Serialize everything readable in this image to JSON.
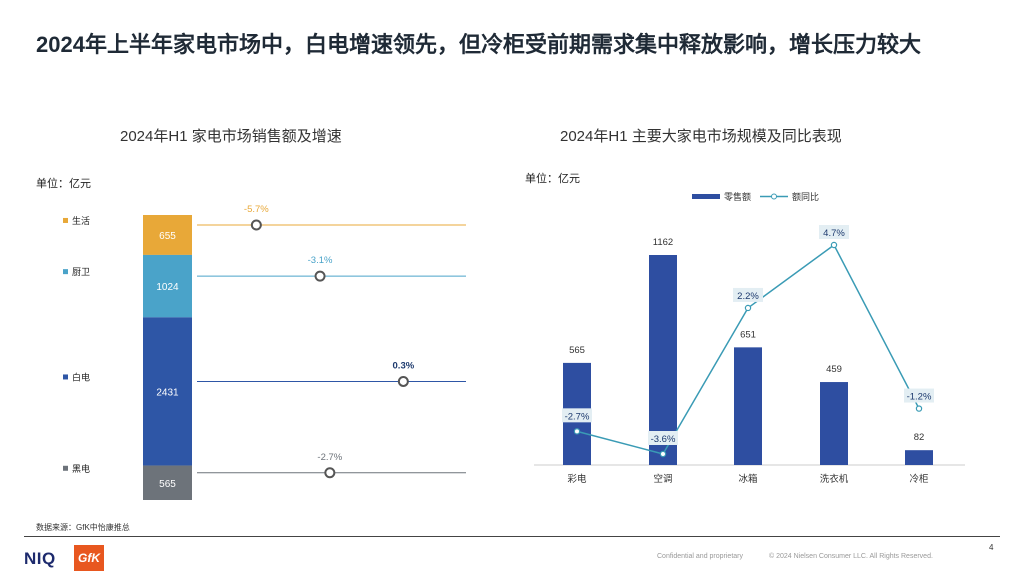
{
  "title": "2024年上半年家电市场中，白电增速领先，但冷柜受前期需求集中释放影响，增长压力较大",
  "chart_data": [
    {
      "type": "bar",
      "title": "2024年H1 家电市场销售额及增速",
      "unit_label": "单位：亿元",
      "categories": [
        "生活",
        "厨卫",
        "白电",
        "黑电"
      ],
      "values": [
        655,
        1024,
        2431,
        565
      ],
      "growth_labels": [
        "-5.7%",
        "-3.1%",
        "0.3%",
        "-2.7%"
      ],
      "growth_pct": [
        -5.7,
        -3.1,
        0.3,
        -2.7
      ],
      "colors": [
        "#e8a838",
        "#4aa3c9",
        "#2e56a6",
        "#6d737a"
      ]
    },
    {
      "type": "bar",
      "title": "2024年H1 主要大家电市场规模及同比表现",
      "unit_label": "单位：亿元",
      "legend": [
        "零售额",
        "额同比"
      ],
      "categories": [
        "彩电",
        "空调",
        "冰箱",
        "洗衣机",
        "冷柜"
      ],
      "series": [
        {
          "name": "零售额",
          "values": [
            565,
            1162,
            651,
            459,
            82
          ],
          "color": "#2e4ea1"
        },
        {
          "name": "额同比",
          "values": [
            -2.7,
            -3.6,
            2.2,
            4.7,
            -1.2
          ],
          "labels": [
            "-2.7%",
            "-3.6%",
            "2.2%",
            "4.7%",
            "-1.2%"
          ],
          "color": "#3a9bb5"
        }
      ],
      "legend_position": "top-center"
    }
  ],
  "source": "数据来源：GfK中怡康推总",
  "footer": {
    "logo_niq": "NIQ",
    "logo_gfk": "GfK",
    "confidential": "Confidential and proprietary",
    "copyright": "© 2024 Nielsen Consumer LLC. All Rights Reserved.",
    "page": "4"
  }
}
